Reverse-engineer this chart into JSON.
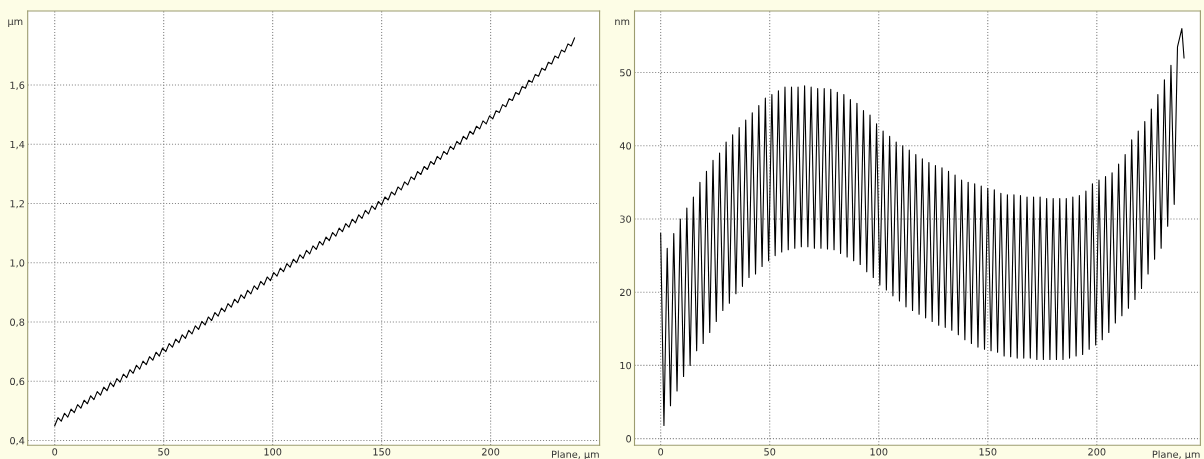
{
  "chart_data": [
    {
      "type": "line",
      "ylabel": "µm",
      "xlabel": "Plane, µm",
      "grid": true,
      "xlim": [
        -12.4,
        250
      ],
      "xticks": [
        0,
        50,
        100,
        150,
        200
      ],
      "ylim": [
        0.384,
        1.85
      ],
      "yticks": [
        {
          "value": 0.4,
          "label": "0,4"
        },
        {
          "value": 0.6,
          "label": "0,6"
        },
        {
          "value": 0.8,
          "label": "0,8"
        },
        {
          "value": 1.0,
          "label": "1,0"
        },
        {
          "value": 1.2,
          "label": "1,2"
        },
        {
          "value": 1.4,
          "label": "1,4"
        },
        {
          "value": 1.6,
          "label": "1,6"
        }
      ],
      "x": [
        0,
        1.5,
        3,
        4.5,
        6,
        7.5,
        9,
        10.5,
        12,
        13.5,
        15,
        16.5,
        18,
        19.5,
        21,
        22.5,
        24,
        25.5,
        27,
        28.5,
        30,
        31.5,
        33,
        34.5,
        36,
        37.5,
        39,
        40.5,
        42,
        43.5,
        45,
        46.5,
        48,
        49.5,
        51,
        52.5,
        54,
        55.5,
        57,
        58.5,
        60,
        61.5,
        63,
        64.5,
        66,
        67.5,
        69,
        70.5,
        72,
        73.5,
        75,
        76.5,
        78,
        79.5,
        81,
        82.5,
        84,
        85.5,
        87,
        88.5,
        90,
        91.5,
        93,
        94.5,
        96,
        97.5,
        99,
        100.5,
        102,
        103.5,
        105,
        106.5,
        108,
        109.5,
        111,
        112.5,
        114,
        115.5,
        117,
        118.5,
        120,
        121.5,
        123,
        124.5,
        126,
        127.5,
        129,
        130.5,
        132,
        133.5,
        135,
        136.5,
        138,
        139.5,
        141,
        142.5,
        144,
        145.5,
        147,
        148.5,
        150,
        151.5,
        153,
        154.5,
        156,
        157.5,
        159,
        160.5,
        162,
        163.5,
        165,
        166.5,
        168,
        169.5,
        171,
        172.5,
        174,
        175.5,
        177,
        178.5,
        180,
        181.5,
        183,
        184.5,
        186,
        187.5,
        189,
        190.5,
        192,
        193.5,
        195,
        196.5,
        198,
        199.5,
        201,
        202.5,
        204,
        205.5,
        207,
        208.5,
        210,
        211.5,
        213,
        214.5,
        216,
        217.5,
        219,
        220.5,
        222,
        223.5,
        225,
        226.5,
        228,
        229.5,
        231,
        232.5,
        234,
        235.5,
        237,
        238.5
      ],
      "series": [
        {
          "color": "#000000",
          "values": [
            0.45,
            0.477,
            0.465,
            0.492,
            0.479,
            0.506,
            0.494,
            0.521,
            0.509,
            0.536,
            0.524,
            0.551,
            0.538,
            0.565,
            0.553,
            0.58,
            0.568,
            0.595,
            0.582,
            0.609,
            0.597,
            0.624,
            0.612,
            0.639,
            0.627,
            0.654,
            0.641,
            0.668,
            0.656,
            0.683,
            0.671,
            0.698,
            0.685,
            0.712,
            0.7,
            0.727,
            0.715,
            0.742,
            0.73,
            0.757,
            0.745,
            0.772,
            0.76,
            0.787,
            0.775,
            0.802,
            0.79,
            0.817,
            0.805,
            0.832,
            0.82,
            0.847,
            0.835,
            0.862,
            0.85,
            0.877,
            0.865,
            0.892,
            0.88,
            0.907,
            0.895,
            0.922,
            0.91,
            0.937,
            0.925,
            0.952,
            0.94,
            0.967,
            0.955,
            0.982,
            0.97,
            0.997,
            0.985,
            1.012,
            1.0,
            1.027,
            1.015,
            1.042,
            1.03,
            1.057,
            1.045,
            1.072,
            1.06,
            1.087,
            1.075,
            1.102,
            1.09,
            1.117,
            1.105,
            1.132,
            1.12,
            1.147,
            1.135,
            1.162,
            1.15,
            1.177,
            1.165,
            1.192,
            1.18,
            1.207,
            1.195,
            1.222,
            1.212,
            1.239,
            1.229,
            1.256,
            1.246,
            1.273,
            1.263,
            1.29,
            1.281,
            1.308,
            1.298,
            1.325,
            1.315,
            1.342,
            1.332,
            1.359,
            1.349,
            1.376,
            1.366,
            1.393,
            1.383,
            1.41,
            1.4,
            1.427,
            1.417,
            1.444,
            1.434,
            1.461,
            1.452,
            1.479,
            1.469,
            1.496,
            1.486,
            1.513,
            1.507,
            1.534,
            1.527,
            1.554,
            1.548,
            1.575,
            1.568,
            1.595,
            1.589,
            1.616,
            1.609,
            1.636,
            1.63,
            1.657,
            1.65,
            1.677,
            1.671,
            1.698,
            1.691,
            1.718,
            1.712,
            1.739,
            1.732,
            1.759
          ]
        }
      ]
    },
    {
      "type": "line",
      "ylabel": "nm",
      "xlabel": "Plane, µm",
      "grid": true,
      "xlim": [
        -12,
        247.5
      ],
      "xticks": [
        0,
        50,
        100,
        150,
        200
      ],
      "ylim": [
        -0.9,
        58.4
      ],
      "yticks": [
        0,
        10,
        20,
        30,
        40,
        50
      ],
      "x": [
        0,
        1.5,
        3,
        4.5,
        6,
        7.5,
        9,
        10.5,
        12,
        13.5,
        15,
        16.5,
        18,
        19.5,
        21,
        22.5,
        24,
        25.5,
        27,
        28.5,
        30,
        31.5,
        33,
        34.5,
        36,
        37.5,
        39,
        40.5,
        42,
        43.5,
        45,
        46.5,
        48,
        49.5,
        51,
        52.5,
        54,
        55.5,
        57,
        58.5,
        60,
        61.5,
        63,
        64.5,
        66,
        67.5,
        69,
        70.5,
        72,
        73.5,
        75,
        76.5,
        78,
        79.5,
        81,
        82.5,
        84,
        85.5,
        87,
        88.5,
        90,
        91.5,
        93,
        94.5,
        96,
        97.5,
        99,
        100.5,
        102,
        103.5,
        105,
        106.5,
        108,
        109.5,
        111,
        112.5,
        114,
        115.5,
        117,
        118.5,
        120,
        121.5,
        123,
        124.5,
        126,
        127.5,
        129,
        130.5,
        132,
        133.5,
        135,
        136.5,
        138,
        139.5,
        141,
        142.5,
        144,
        145.5,
        147,
        148.5,
        150,
        151.5,
        153,
        154.5,
        156,
        157.5,
        159,
        160.5,
        162,
        163.5,
        165,
        166.5,
        168,
        169.5,
        171,
        172.5,
        174,
        175.5,
        177,
        178.5,
        180,
        181.5,
        183,
        184.5,
        186,
        187.5,
        189,
        190.5,
        192,
        193.5,
        195,
        196.5,
        198,
        199.5,
        201,
        202.5,
        204,
        205.5,
        207,
        208.5,
        210,
        211.5,
        213,
        214.5,
        216,
        217.5,
        219,
        220.5,
        222,
        223.5,
        225,
        226.5,
        228,
        229.5,
        231,
        232.5,
        234,
        235.5,
        237,
        239,
        240
      ],
      "series": [
        {
          "color": "#000000",
          "values": [
            28,
            1.8,
            26,
            4.5,
            28,
            6.5,
            30,
            8.5,
            31.5,
            10,
            33,
            12,
            35,
            13,
            36.5,
            14.5,
            38,
            16,
            39,
            17.5,
            40.5,
            18.5,
            41.5,
            19.8,
            42.5,
            20.8,
            43.5,
            22,
            44.5,
            22.5,
            45.5,
            23.5,
            46.5,
            24.3,
            47,
            25,
            47.5,
            25.5,
            48,
            25.8,
            48,
            26,
            48,
            26.2,
            48.2,
            26.2,
            48,
            26,
            47.8,
            26,
            47.8,
            25.9,
            47.7,
            25.8,
            47.3,
            25.3,
            47,
            24.8,
            46.3,
            24.3,
            45.8,
            23.8,
            44.8,
            22.8,
            44.2,
            22,
            43,
            21,
            42,
            20.3,
            41.3,
            19.5,
            40.5,
            18.8,
            40,
            18,
            39.4,
            17.5,
            38.8,
            17,
            38.2,
            16.5,
            37.7,
            16,
            37.3,
            15.5,
            37,
            15.2,
            36.5,
            14.8,
            36,
            14.2,
            35.3,
            13.5,
            35,
            13,
            34.8,
            12.5,
            34.5,
            12.2,
            34.2,
            12,
            34,
            11.8,
            33.5,
            11.3,
            33.3,
            11.2,
            33.3,
            11,
            33.2,
            11,
            33,
            11,
            33,
            10.8,
            33,
            10.8,
            32.8,
            10.8,
            32.8,
            10.8,
            32.8,
            10.8,
            32.8,
            11,
            33,
            11.3,
            33.2,
            11.5,
            33.8,
            12.2,
            34.8,
            12.8,
            35.3,
            13.5,
            35.8,
            14.5,
            36.3,
            15.8,
            37.5,
            16.8,
            38.8,
            17.8,
            40.8,
            19,
            42,
            20.5,
            43.3,
            22.5,
            45,
            24.5,
            47,
            26,
            49,
            29,
            51,
            32,
            53.5,
            56,
            52
          ]
        }
      ]
    }
  ]
}
